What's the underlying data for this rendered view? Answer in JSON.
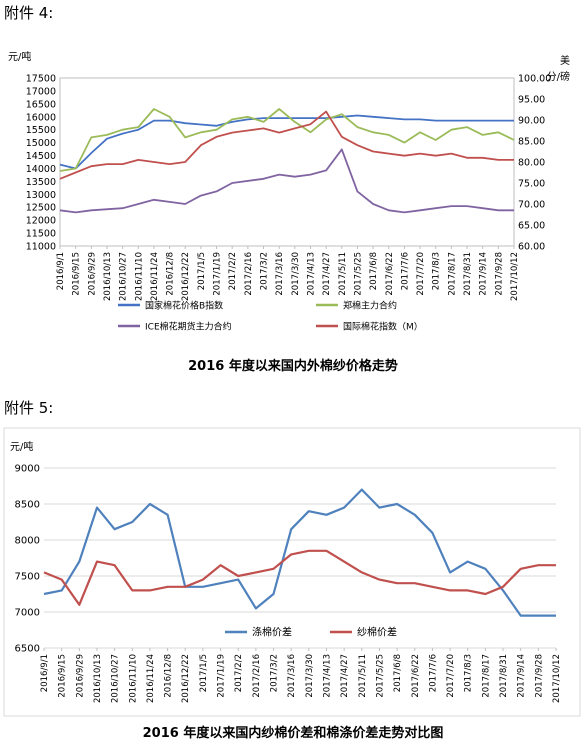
{
  "annex4_heading": "附件 4:",
  "annex5_heading": "附件 5:",
  "chart_data": [
    {
      "type": "line",
      "title": "2016 年度以来国内外棉纱价格走势",
      "ylabel_left": "元/吨",
      "ylabel_right": "美分/磅",
      "ylim_left": [
        11000,
        17500
      ],
      "yticks_left": [
        11000,
        11500,
        12000,
        12500,
        13000,
        13500,
        14000,
        14500,
        15000,
        15500,
        16000,
        16500,
        17000,
        17500
      ],
      "ylim_right": [
        60,
        100
      ],
      "yticks_right": [
        "60.00",
        "65.00",
        "70.00",
        "75.00",
        "80.00",
        "85.00",
        "90.00",
        "95.00",
        "100.00"
      ],
      "legend_position": "bottom",
      "x_tick_labels": [
        "2016/9/1",
        "2016/9/15",
        "2016/9/29",
        "2016/10/13",
        "2016/10/27",
        "2016/11/10",
        "2016/11/24",
        "2016/12/8",
        "2016/12/22",
        "2017/1/5",
        "2017/1/19",
        "2017/2/2",
        "2017/2/16",
        "2017/3/2",
        "2017/3/16",
        "2017/3/30",
        "2017/4/13",
        "2017/4/27",
        "2017/5/11",
        "2017/5/25",
        "2017/6/8",
        "2017/6/22",
        "2017/7/6",
        "2017/7/20",
        "2017/8/3",
        "2017/8/17",
        "2017/8/31",
        "2017/9/14",
        "2017/9/28",
        "2017/10/12"
      ],
      "series": [
        {
          "name": "国家棉花价格B指数",
          "axis": "left",
          "color": "#4472C4",
          "x": [
            "2016/9/1",
            "2016/9/15",
            "2016/9/29",
            "2016/10/13",
            "2016/10/27",
            "2016/11/10",
            "2016/11/24",
            "2016/12/8",
            "2016/12/22",
            "2017/1/5",
            "2017/1/19",
            "2017/2/2",
            "2017/2/16",
            "2017/3/2",
            "2017/3/16",
            "2017/3/30",
            "2017/4/13",
            "2017/4/27",
            "2017/5/11",
            "2017/5/25",
            "2017/6/8",
            "2017/6/22",
            "2017/7/6",
            "2017/7/20",
            "2017/8/3",
            "2017/8/17",
            "2017/8/31",
            "2017/9/14",
            "2017/9/28",
            "2017/10/12"
          ],
          "values": [
            14150,
            14000,
            14600,
            15150,
            15350,
            15500,
            15850,
            15850,
            15750,
            15700,
            15650,
            15800,
            15900,
            15950,
            15950,
            15950,
            15950,
            15950,
            16000,
            16050,
            16000,
            15950,
            15900,
            15900,
            15850,
            15850,
            15850,
            15850,
            15850,
            15850
          ]
        },
        {
          "name": "郑棉主力合约",
          "axis": "left",
          "color": "#9BBB59",
          "x": [
            "2016/9/1",
            "2016/9/15",
            "2016/9/29",
            "2016/10/13",
            "2016/10/27",
            "2016/11/10",
            "2016/11/24",
            "2016/12/8",
            "2016/12/22",
            "2017/1/5",
            "2017/1/19",
            "2017/2/2",
            "2017/2/16",
            "2017/3/2",
            "2017/3/16",
            "2017/3/30",
            "2017/4/13",
            "2017/4/27",
            "2017/5/11",
            "2017/5/25",
            "2017/6/8",
            "2017/6/22",
            "2017/7/6",
            "2017/7/20",
            "2017/8/3",
            "2017/8/17",
            "2017/8/31",
            "2017/9/14",
            "2017/9/28",
            "2017/10/12"
          ],
          "values": [
            13900,
            14000,
            15200,
            15300,
            15500,
            15600,
            16300,
            16000,
            15200,
            15400,
            15500,
            15900,
            16000,
            15800,
            16300,
            15800,
            15400,
            15900,
            16100,
            15600,
            15400,
            15300,
            15000,
            15400,
            15100,
            15500,
            15600,
            15300,
            15400,
            15100
          ]
        },
        {
          "name": "ICE棉花期货主力合约",
          "axis": "right",
          "color": "#8064A2",
          "x": [
            "2016/9/1",
            "2016/9/15",
            "2016/9/29",
            "2016/10/27",
            "2016/11/10",
            "2016/11/24",
            "2016/12/8",
            "2016/12/22",
            "2017/1/5",
            "2017/1/19",
            "2017/2/2",
            "2017/3/2",
            "2017/3/16",
            "2017/3/30",
            "2017/4/13",
            "2017/4/27",
            "2017/5/11",
            "2017/5/25",
            "2017/6/8",
            "2017/6/22",
            "2017/7/6",
            "2017/7/20",
            "2017/8/3",
            "2017/8/17",
            "2017/8/31",
            "2017/9/14",
            "2017/9/28",
            "2017/10/12"
          ],
          "values": [
            68.5,
            68.0,
            68.5,
            69.0,
            70.0,
            71.0,
            70.5,
            70.0,
            72.0,
            73.0,
            75.0,
            76.0,
            77.0,
            76.5,
            77.0,
            78.0,
            83.0,
            73.0,
            70.0,
            68.5,
            68.0,
            68.5,
            69.0,
            69.5,
            69.5,
            69.0,
            68.5,
            68.5
          ]
        },
        {
          "name": "国际棉花指数（M）",
          "axis": "right",
          "color": "#C0504D",
          "x": [
            "2016/9/1",
            "2016/9/15",
            "2016/9/29",
            "2016/10/13",
            "2016/10/27",
            "2016/11/10",
            "2016/11/24",
            "2016/12/8",
            "2016/12/22",
            "2017/1/5",
            "2017/1/19",
            "2017/2/2",
            "2017/2/16",
            "2017/3/2",
            "2017/3/16",
            "2017/3/30",
            "2017/4/13",
            "2017/4/27",
            "2017/5/11",
            "2017/5/25",
            "2017/6/8",
            "2017/6/22",
            "2017/7/6",
            "2017/7/20",
            "2017/8/3",
            "2017/8/17",
            "2017/8/31",
            "2017/9/14",
            "2017/9/28",
            "2017/10/12"
          ],
          "values": [
            76.0,
            77.5,
            79.0,
            79.5,
            79.5,
            80.5,
            80.0,
            79.5,
            80.0,
            84.0,
            86.0,
            87.0,
            87.5,
            88.0,
            87.0,
            88.0,
            89.0,
            92.0,
            86.0,
            84.0,
            82.5,
            82.0,
            81.5,
            82.0,
            81.5,
            82.0,
            81.0,
            81.0,
            80.5,
            80.5
          ]
        }
      ]
    },
    {
      "type": "line",
      "title": "2016 年度以来国内纱棉价差和棉涤价差走势对比图",
      "ylabel": "元/吨",
      "ylim": [
        6500,
        9000
      ],
      "yticks": [
        6500,
        7000,
        7500,
        8000,
        8500,
        9000
      ],
      "legend_position": "bottom",
      "x_tick_labels": [
        "2016/9/1",
        "2016/9/15",
        "2016/9/29",
        "2016/10/13",
        "2016/10/27",
        "2016/11/10",
        "2016/11/24",
        "2016/12/8",
        "2016/12/22",
        "2017/1/5",
        "2017/1/19",
        "2017/2/2",
        "2017/2/16",
        "2017/3/2",
        "2017/3/16",
        "2017/3/30",
        "2017/4/13",
        "2017/4/27",
        "2017/5/11",
        "2017/5/25",
        "2017/6/8",
        "2017/6/22",
        "2017/7/6",
        "2017/7/20",
        "2017/8/3",
        "2017/8/17",
        "2017/8/31",
        "2017/9/14",
        "2017/9/28",
        "2017/10/12"
      ],
      "series": [
        {
          "name": "涤棉价差",
          "color": "#4F81BD",
          "x": [
            "2016/9/1",
            "2016/9/15",
            "2016/9/29",
            "2016/10/13",
            "2016/10/27",
            "2016/11/10",
            "2016/11/24",
            "2016/12/8",
            "2016/12/22",
            "2017/1/5",
            "2017/1/19",
            "2017/2/2",
            "2017/2/16",
            "2017/3/2",
            "2017/3/16",
            "2017/3/30",
            "2017/4/13",
            "2017/4/27",
            "2017/5/11",
            "2017/5/25",
            "2017/6/8",
            "2017/6/22",
            "2017/7/6",
            "2017/7/20",
            "2017/8/3",
            "2017/8/17",
            "2017/8/31",
            "2017/9/14",
            "2017/9/28",
            "2017/10/12"
          ],
          "values": [
            7250,
            7300,
            7700,
            8450,
            8150,
            8250,
            8500,
            8350,
            7350,
            7350,
            7400,
            7450,
            7050,
            7250,
            8150,
            8400,
            8350,
            8450,
            8700,
            8450,
            8500,
            8350,
            8100,
            7550,
            7700,
            7600,
            7300,
            6950,
            6950,
            6950
          ]
        },
        {
          "name": "纱棉价差",
          "color": "#C0504D",
          "x": [
            "2016/9/1",
            "2016/9/15",
            "2016/9/29",
            "2016/10/13",
            "2016/10/27",
            "2016/11/10",
            "2016/11/24",
            "2016/12/8",
            "2016/12/22",
            "2017/1/5",
            "2017/1/19",
            "2017/2/2",
            "2017/2/16",
            "2017/3/2",
            "2017/3/16",
            "2017/3/30",
            "2017/4/13",
            "2017/4/27",
            "2017/5/11",
            "2017/5/25",
            "2017/6/8",
            "2017/6/22",
            "2017/7/6",
            "2017/7/20",
            "2017/8/3",
            "2017/8/17",
            "2017/8/31",
            "2017/9/14",
            "2017/9/28",
            "2017/10/12"
          ],
          "values": [
            7550,
            7450,
            7100,
            7700,
            7650,
            7300,
            7300,
            7350,
            7350,
            7450,
            7650,
            7500,
            7550,
            7600,
            7800,
            7850,
            7850,
            7700,
            7550,
            7450,
            7400,
            7400,
            7350,
            7300,
            7300,
            7250,
            7350,
            7600,
            7650,
            7650
          ]
        }
      ]
    }
  ]
}
